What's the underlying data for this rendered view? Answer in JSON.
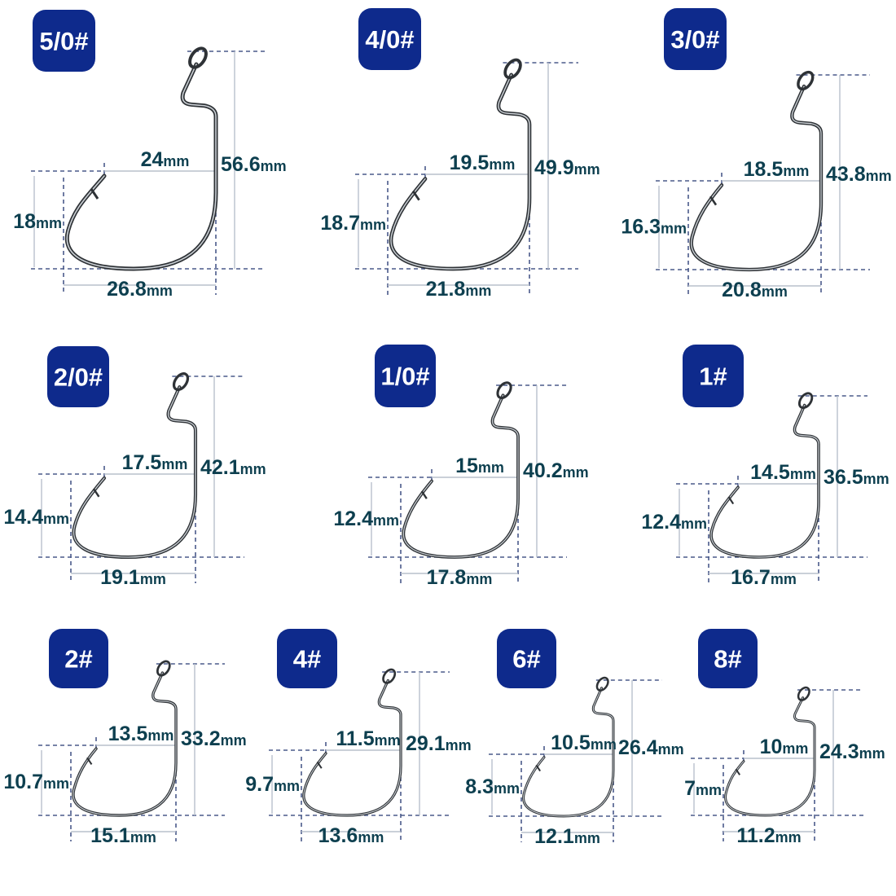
{
  "colors": {
    "badge": "#0e2a8c",
    "label_text": "#0d3f4f",
    "dashed_guide": "#4a5a8a",
    "solid_guide": "#b8c0cc",
    "hook_wire": "#2e3236"
  },
  "unit": "mm",
  "hooks": [
    {
      "size": "5/0#",
      "gap": "24",
      "length": "56.6",
      "point_height": "18",
      "width": "26.8"
    },
    {
      "size": "4/0#",
      "gap": "19.5",
      "length": "49.9",
      "point_height": "18.7",
      "width": "21.8"
    },
    {
      "size": "3/0#",
      "gap": "18.5",
      "length": "43.8",
      "point_height": "16.3",
      "width": "20.8"
    },
    {
      "size": "2/0#",
      "gap": "17.5",
      "length": "42.1",
      "point_height": "14.4",
      "width": "19.1"
    },
    {
      "size": "1/0#",
      "gap": "15",
      "length": "40.2",
      "point_height": "12.4",
      "width": "17.8"
    },
    {
      "size": "1#",
      "gap": "14.5",
      "length": "36.5",
      "point_height": "12.4",
      "width": "16.7"
    },
    {
      "size": "2#",
      "gap": "13.5",
      "length": "33.2",
      "point_height": "10.7",
      "width": "15.1"
    },
    {
      "size": "4#",
      "gap": "11.5",
      "length": "29.1",
      "point_height": "9.7",
      "width": "13.6"
    },
    {
      "size": "6#",
      "gap": "10.5",
      "length": "26.4",
      "point_height": "8.3",
      "width": "12.1"
    },
    {
      "size": "8#",
      "gap": "10",
      "length": "24.3",
      "point_height": "7",
      "width": "11.2"
    }
  ]
}
